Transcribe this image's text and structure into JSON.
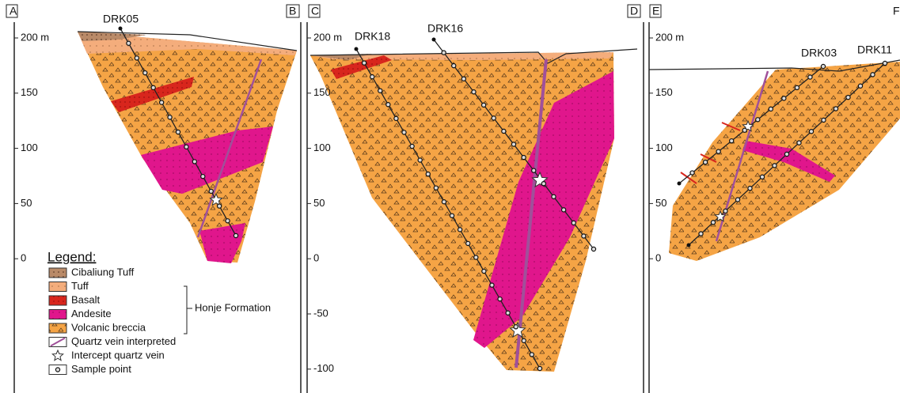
{
  "panels": [
    {
      "left_label": "A",
      "right_label": "B",
      "axis_labels": [
        "200 m",
        "150",
        "100",
        "50",
        "0"
      ],
      "drill_holes": [
        "DRK05"
      ]
    },
    {
      "left_label": "C",
      "right_label": "D",
      "axis_labels": [
        "200 m",
        "150",
        "100",
        "50",
        "0",
        "-50",
        "-100"
      ],
      "drill_holes": [
        "DRK18",
        "DRK16"
      ]
    },
    {
      "left_label": "E",
      "right_label": "F",
      "axis_labels": [
        "200 m",
        "150",
        "100",
        "50",
        "0"
      ],
      "drill_holes": [
        "DRK03",
        "DRK11"
      ]
    }
  ],
  "legend": {
    "title": "Legend:",
    "items": [
      "Cibaliung Tuff",
      "Tuff",
      "Basalt",
      "Andesite",
      "Volcanic breccia",
      "Quartz vein interpreted",
      "Intercept quartz vein",
      "Sample point"
    ],
    "group_label": "Honje Formation"
  }
}
